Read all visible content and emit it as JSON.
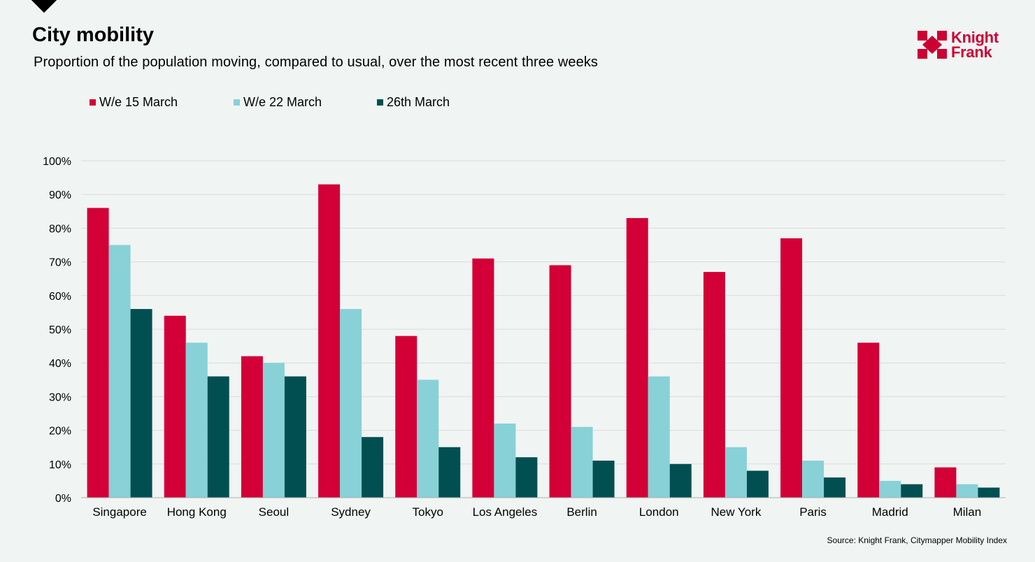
{
  "header": {
    "title": "City mobility",
    "subtitle": "Proportion of the population moving, compared to usual, over the most recent three weeks"
  },
  "brand": {
    "line1": "Knight",
    "line2": "Frank",
    "color": "#cc0033"
  },
  "footer": {
    "source": "Source: Knight Frank, Citymapper Mobility Index"
  },
  "chart_data": {
    "type": "bar",
    "title": "City mobility",
    "xlabel": "",
    "ylabel": "",
    "ylim": [
      0,
      100
    ],
    "yticks": [
      0,
      10,
      20,
      30,
      40,
      50,
      60,
      70,
      80,
      90,
      100
    ],
    "ytick_labels": [
      "0%",
      "10%",
      "20%",
      "30%",
      "40%",
      "50%",
      "60%",
      "70%",
      "80%",
      "90%",
      "100%"
    ],
    "grid": true,
    "legend_position": "top-left",
    "categories": [
      "Singapore",
      "Hong Kong",
      "Seoul",
      "Sydney",
      "Tokyo",
      "Los Angeles",
      "Berlin",
      "London",
      "New York",
      "Paris",
      "Madrid",
      "Milan"
    ],
    "series": [
      {
        "name": "W/e 15 March",
        "color": "#d20036",
        "values": [
          86,
          54,
          42,
          93,
          48,
          71,
          69,
          83,
          67,
          77,
          46,
          9
        ]
      },
      {
        "name": "W/e 22 March",
        "color": "#88d1d6",
        "values": [
          75,
          46,
          40,
          56,
          35,
          22,
          21,
          36,
          15,
          11,
          5,
          4
        ]
      },
      {
        "name": "26th March",
        "color": "#024f52",
        "values": [
          56,
          36,
          36,
          18,
          15,
          12,
          11,
          10,
          8,
          6,
          4,
          3
        ]
      }
    ]
  }
}
